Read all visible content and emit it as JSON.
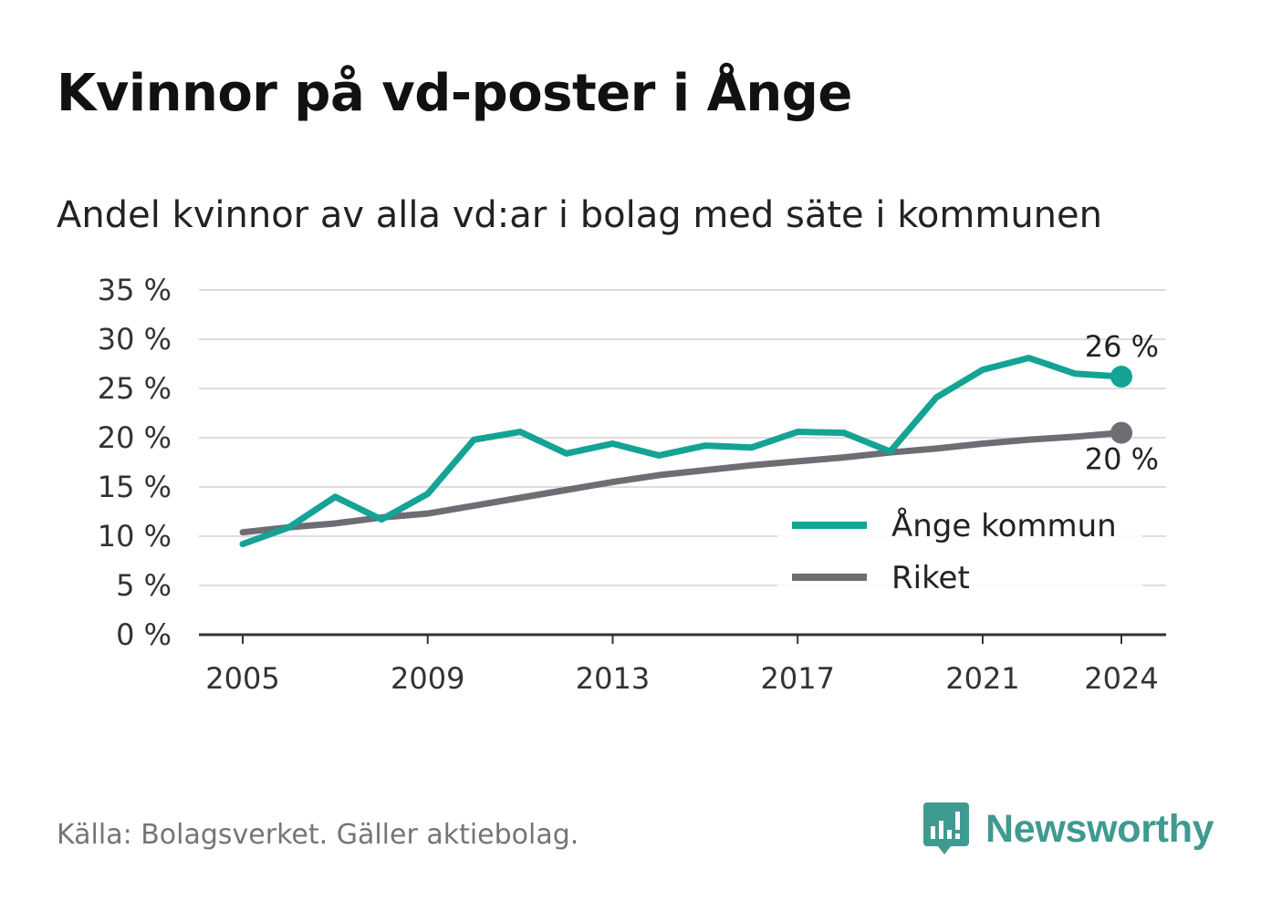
{
  "title": "Kvinnor på vd-poster i Ånge",
  "subtitle": "Andel kvinnor av alla vd:ar i bolag med säte i kommunen",
  "source": "Källa: Bolagsverket. Gäller aktiebolag.",
  "brand": {
    "name": "Newsworthy",
    "icon": "newsworthy-logo-icon"
  },
  "colors": {
    "ange": "#14a394",
    "riket": "#6e6d73",
    "grid": "#dddddd",
    "axis": "#333333"
  },
  "chart_data": {
    "type": "line",
    "title": "Kvinnor på vd-poster i Ånge",
    "subtitle": "Andel kvinnor av alla vd:ar i bolag med säte i kommunen",
    "x": [
      2005,
      2006,
      2007,
      2008,
      2009,
      2010,
      2011,
      2012,
      2013,
      2014,
      2015,
      2016,
      2017,
      2018,
      2019,
      2020,
      2021,
      2022,
      2023,
      2024
    ],
    "x_ticks": [
      "2005",
      "2009",
      "2013",
      "2017",
      "2021",
      "2024"
    ],
    "y_ticks": [
      "0 %",
      "5 %",
      "10 %",
      "15 %",
      "20 %",
      "25 %",
      "30 %",
      "35 %"
    ],
    "ylim": [
      0,
      35
    ],
    "grid": true,
    "legend_position": "bottom-right",
    "series": [
      {
        "name": "Ånge kommun",
        "color": "#14a394",
        "values": [
          9.2,
          10.9,
          14.0,
          11.7,
          14.3,
          19.8,
          20.6,
          18.4,
          19.4,
          18.2,
          19.2,
          19.0,
          20.6,
          20.5,
          18.6,
          24.1,
          26.9,
          28.1,
          26.5,
          26.2
        ],
        "end_label": "26 %"
      },
      {
        "name": "Riket",
        "color": "#6e6d73",
        "values": [
          10.4,
          10.9,
          11.3,
          11.9,
          12.3,
          13.1,
          13.9,
          14.7,
          15.5,
          16.2,
          16.7,
          17.2,
          17.6,
          18.0,
          18.5,
          18.9,
          19.4,
          19.8,
          20.1,
          20.5
        ],
        "end_label": "20 %"
      }
    ]
  }
}
